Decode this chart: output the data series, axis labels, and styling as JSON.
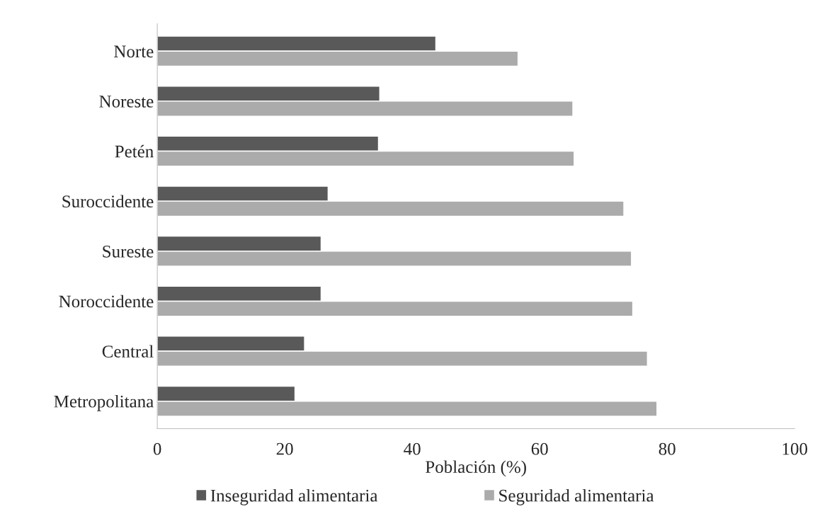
{
  "chart_data": {
    "type": "bar",
    "orientation": "horizontal",
    "xlabel": "Población (%)",
    "categories": [
      "Norte",
      "Noreste",
      "Petén",
      "Suroccidente",
      "Sureste",
      "Noroccidente",
      "Central",
      "Metropolitana"
    ],
    "series": [
      {
        "name": "Inseguridad alimentaria",
        "color": "#595959",
        "values": [
          43.7,
          34.9,
          34.7,
          26.8,
          25.7,
          25.7,
          23.1,
          21.6
        ]
      },
      {
        "name": "Seguridad alimentaria",
        "color": "#ababab",
        "values": [
          56.6,
          65.2,
          65.4,
          73.2,
          74.4,
          74.6,
          76.9,
          78.4
        ]
      }
    ],
    "xlim": [
      0,
      100
    ],
    "xticks": [
      0,
      20,
      40,
      60,
      80,
      100
    ],
    "grid": false,
    "legend": "bottom"
  }
}
